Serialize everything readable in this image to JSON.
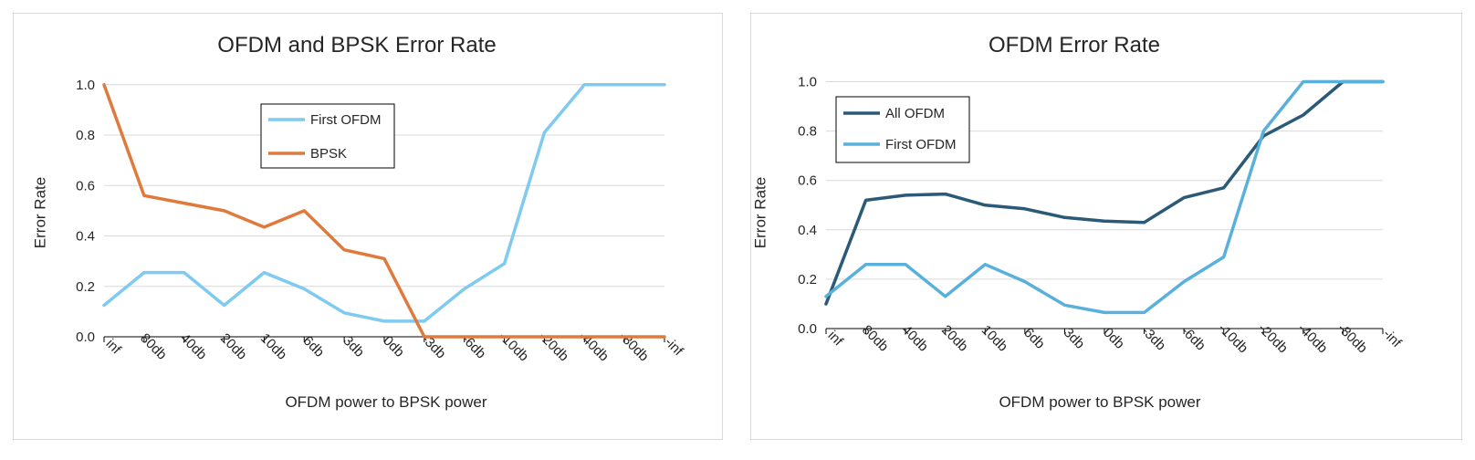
{
  "chart_data": [
    {
      "type": "line",
      "title": "OFDM and BPSK Error Rate",
      "xlabel": "OFDM power to BPSK power",
      "ylabel": "Error Rate",
      "categories": [
        "inf",
        "80db",
        "40db",
        "20db",
        "10db",
        "6db",
        "3db",
        "0db",
        "-3db",
        "-6db",
        "-10db",
        "-20db",
        "-40db",
        "-80db",
        "-inf"
      ],
      "yticks": [
        "0.0",
        "0.2",
        "0.4",
        "0.6",
        "0.8",
        "1.0"
      ],
      "ylim": [
        0,
        1.05
      ],
      "grid": true,
      "legend_position": "top-center",
      "series": [
        {
          "name": "First OFDM",
          "color": "#7ecaf0",
          "values": [
            0.125,
            0.255,
            0.255,
            0.125,
            0.255,
            0.19,
            0.095,
            0.062,
            0.062,
            0.19,
            0.29,
            0.81,
            1.0,
            1.0,
            1.0
          ]
        },
        {
          "name": "BPSK",
          "color": "#e07a3c",
          "values": [
            1.0,
            0.56,
            0.53,
            0.5,
            0.435,
            0.5,
            0.345,
            0.31,
            0.0,
            0.0,
            0.0,
            0.0,
            0.0,
            0.0,
            0.0
          ]
        }
      ]
    },
    {
      "type": "line",
      "title": "OFDM Error Rate",
      "xlabel": "OFDM power to BPSK power",
      "ylabel": "Error Rate",
      "categories": [
        "inf",
        "80db",
        "40db",
        "20db",
        "10db",
        "6db",
        "3db",
        "0db",
        "-3db",
        "-6db",
        "-10db",
        "-20db",
        "-40db",
        "-80db",
        "-inf"
      ],
      "yticks": [
        "0.0",
        "0.2",
        "0.4",
        "0.6",
        "0.8",
        "1.0"
      ],
      "ylim": [
        0,
        1.05
      ],
      "grid": true,
      "legend_position": "top-left",
      "series": [
        {
          "name": "All OFDM",
          "color": "#2a5a78",
          "values": [
            0.1,
            0.52,
            0.54,
            0.545,
            0.5,
            0.485,
            0.45,
            0.435,
            0.43,
            0.53,
            0.57,
            0.78,
            0.865,
            1.0,
            1.0
          ]
        },
        {
          "name": "First OFDM",
          "color": "#5ab0dd",
          "values": [
            0.13,
            0.26,
            0.26,
            0.13,
            0.26,
            0.19,
            0.095,
            0.065,
            0.065,
            0.19,
            0.29,
            0.8,
            1.0,
            1.0,
            1.0
          ]
        }
      ]
    }
  ]
}
